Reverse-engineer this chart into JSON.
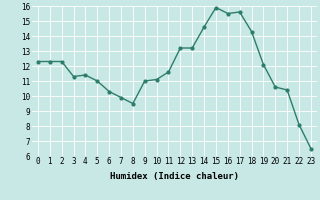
{
  "x": [
    0,
    1,
    2,
    3,
    4,
    5,
    6,
    7,
    8,
    9,
    10,
    11,
    12,
    13,
    14,
    15,
    16,
    17,
    18,
    19,
    20,
    21,
    22,
    23
  ],
  "y": [
    12.3,
    12.3,
    12.3,
    11.3,
    11.4,
    11.0,
    10.3,
    9.9,
    9.5,
    11.0,
    11.1,
    11.6,
    13.2,
    13.2,
    14.6,
    15.9,
    15.5,
    15.6,
    14.3,
    12.1,
    10.6,
    10.4,
    8.1,
    6.5
  ],
  "line_color": "#2d7d6b",
  "marker_color": "#2d7d6b",
  "bg_color": "#c8e8e5",
  "grid_color": "#ffffff",
  "xlabel": "Humidex (Indice chaleur)",
  "ylim": [
    6,
    16
  ],
  "xlim": [
    -0.5,
    23.5
  ],
  "yticks": [
    6,
    7,
    8,
    9,
    10,
    11,
    12,
    13,
    14,
    15,
    16
  ],
  "xticks": [
    0,
    1,
    2,
    3,
    4,
    5,
    6,
    7,
    8,
    9,
    10,
    11,
    12,
    13,
    14,
    15,
    16,
    17,
    18,
    19,
    20,
    21,
    22,
    23
  ],
  "xlabel_fontsize": 6.5,
  "tick_fontsize": 5.5,
  "line_width": 1.0,
  "marker_size": 2.0
}
